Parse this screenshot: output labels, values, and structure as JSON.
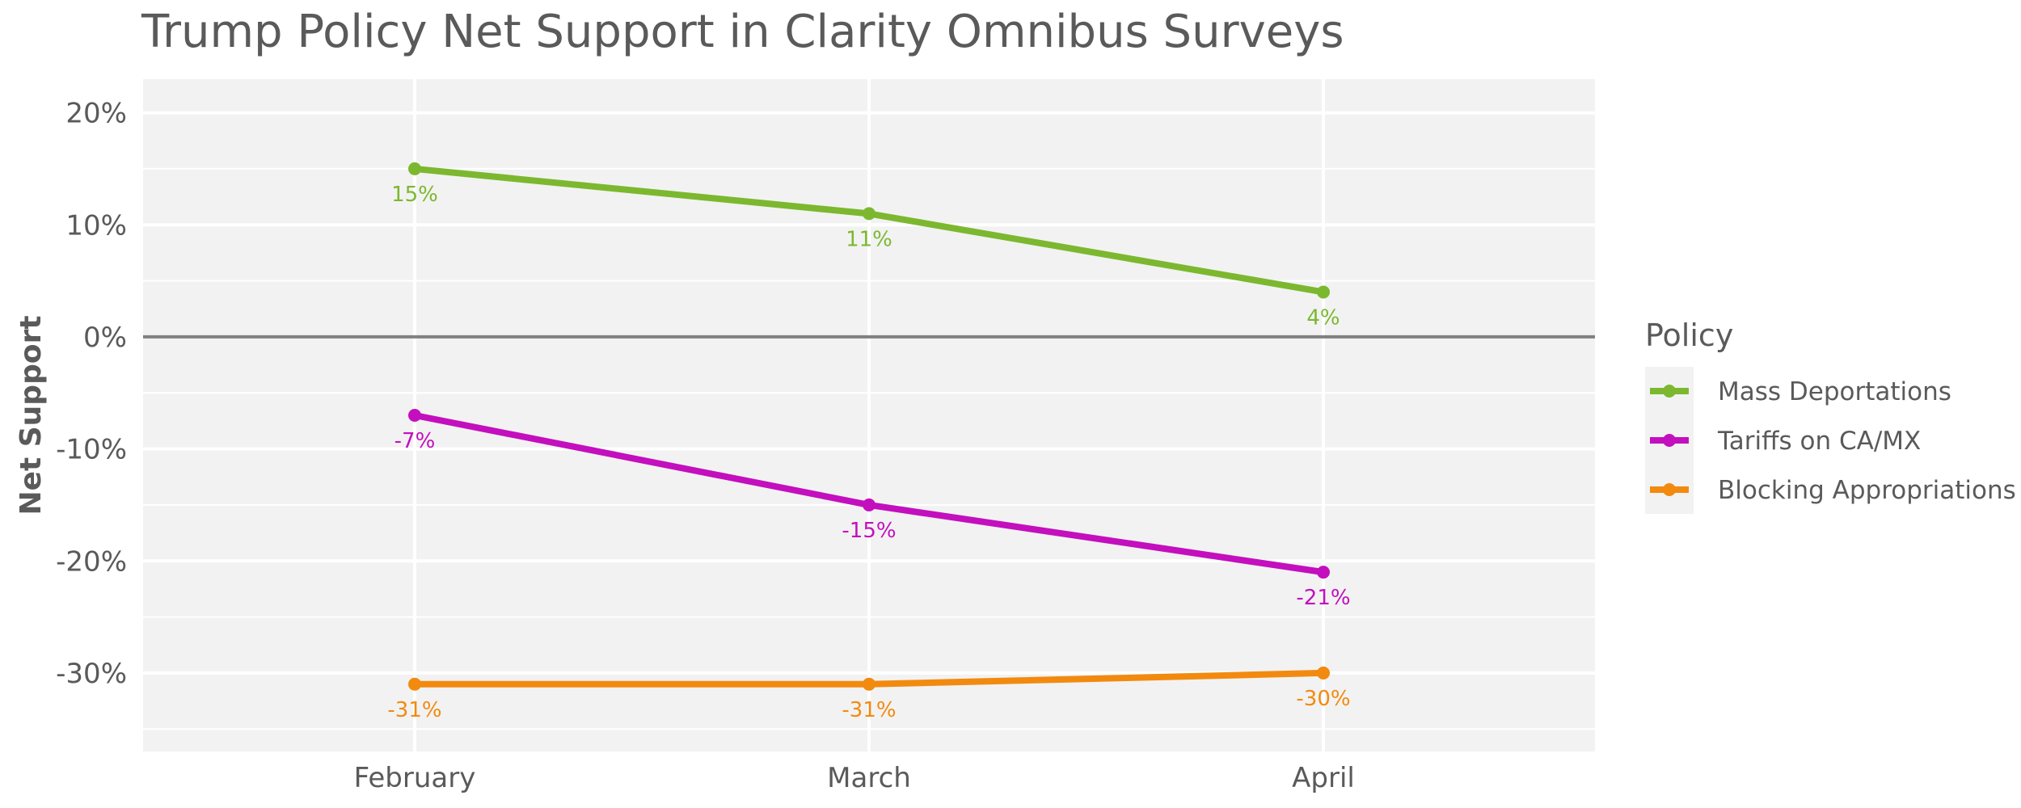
{
  "chart_data": {
    "type": "line",
    "title": "Trump Policy Net Support in Clarity Omnibus Surveys",
    "ylabel": "Net Support",
    "xlabel": "",
    "categories": [
      "February",
      "March",
      "April"
    ],
    "ylim": [
      -37,
      23
    ],
    "y_ticks": [
      20,
      10,
      0,
      -10,
      -20,
      -30
    ],
    "y_tick_labels": [
      "20%",
      "10%",
      "0%",
      "-10%",
      "-20%",
      "-30%"
    ],
    "grid": true,
    "zero_line": true,
    "legend_title": "Policy",
    "legend_position": "right",
    "series": [
      {
        "name": "Mass Deportations",
        "color": "#7cb82f",
        "values": [
          15,
          11,
          4
        ],
        "labels": [
          "15%",
          "11%",
          "4%"
        ]
      },
      {
        "name": "Tariffs on CA/MX",
        "color": "#c30fbe",
        "values": [
          -7,
          -15,
          -21
        ],
        "labels": [
          "-7%",
          "-15%",
          "-21%"
        ]
      },
      {
        "name": "Blocking Appropriations",
        "color": "#f28a0f",
        "values": [
          -31,
          -31,
          -30
        ],
        "labels": [
          "-31%",
          "-31%",
          "-30%"
        ]
      }
    ]
  }
}
